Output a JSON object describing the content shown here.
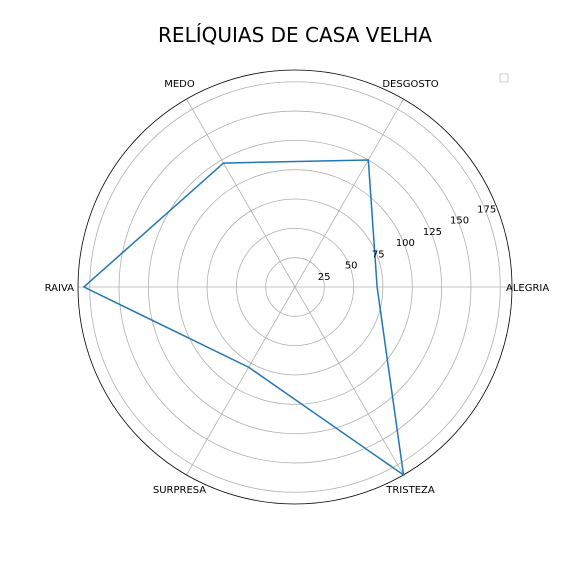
{
  "chart_data": {
    "type": "radar",
    "title": "RELÍQUIAS DE CASA VELHA",
    "categories": [
      "ALEGRIA",
      "DESGOSTO",
      "MEDO",
      "RAIVA",
      "SURPRESA",
      "TRISTEZA"
    ],
    "series": [
      {
        "values": [
          70,
          125,
          122,
          180,
          79,
          185
        ],
        "color": "#1f77b4"
      }
    ],
    "radial_ticks": [
      25,
      50,
      75,
      100,
      125,
      150,
      175
    ],
    "rlim": [
      0,
      185
    ],
    "grid": true,
    "legend": "top-right, empty"
  }
}
